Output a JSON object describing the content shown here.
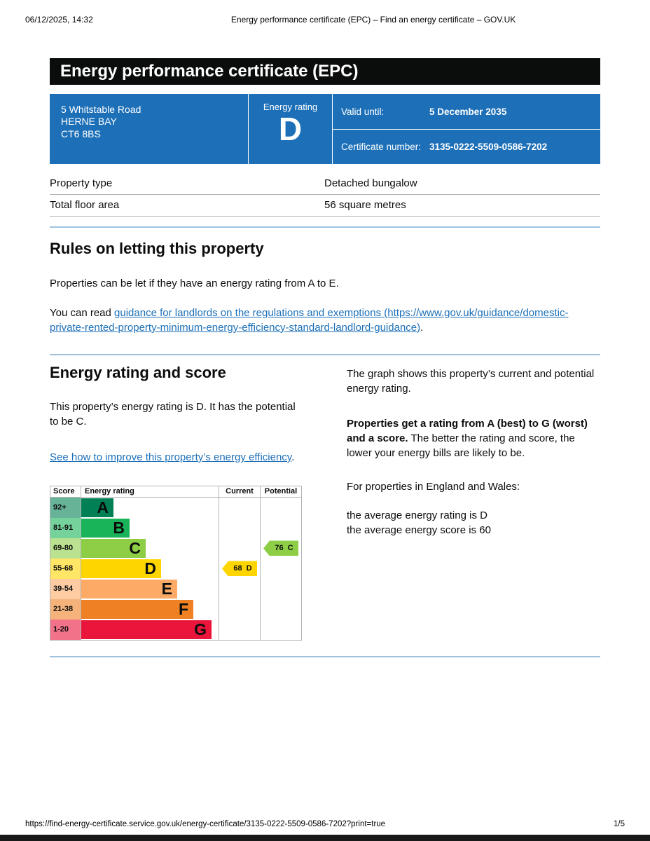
{
  "colors": {
    "govuk_blue": "#1d70b8",
    "link": "#1d70b8",
    "banner_bg": "#0b0c0c",
    "divider": "#9ec2de",
    "table_border": "#b1b4b6",
    "text": "#0b0c0c"
  },
  "print": {
    "timestamp": "06/12/2025, 14:32",
    "doc_title": "Energy performance certificate (EPC) – Find an energy certificate – GOV.UK",
    "footer_url": "https://find-energy-certificate.service.gov.uk/energy-certificate/3135-0222-5509-0586-7202?print=true",
    "page_number": "1/5"
  },
  "banner": {
    "title": "Energy performance certificate (EPC)"
  },
  "summary": {
    "panel_color": "#1d70b8",
    "address_lines": [
      "5 Whitstable Road",
      "HERNE BAY",
      "CT6 8BS"
    ],
    "rating_label": "Energy rating",
    "rating_value": "D",
    "valid_until_label": "Valid until:",
    "valid_until_value": "5 December 2035",
    "certificate_number_label": "Certificate number:",
    "certificate_number_value": "3135-0222-5509-0586-7202"
  },
  "property_table": {
    "rows": [
      {
        "label": "Property type",
        "value": "Detached bungalow"
      },
      {
        "label": "Total floor area",
        "value": "56 square metres"
      }
    ]
  },
  "letting": {
    "heading": "Rules on letting this property",
    "para1": "Properties can be let if they have an energy rating from A to E.",
    "para2_prefix": "You can read ",
    "para2_link": "guidance for landlords on the regulations and exemptions (https://www.gov.uk/guidance/domestic-private-rented-property-minimum-energy-efficiency-standard-landlord-guidance)",
    "para2_suffix": "."
  },
  "rating_section": {
    "heading": "Energy rating and score",
    "intro": "This property’s energy rating is D. It has the potential to be C.",
    "improve_link": "See how to improve this property’s energy efficiency",
    "improve_suffix": ".",
    "graph_para": "The graph shows this property’s current and potential energy rating.",
    "explain_bold": "Properties get a rating from A (best) to G (worst) and a score.",
    "explain_rest": " The better the rating and score, the lower your energy bills are likely to be.",
    "region_para": "For properties in England and Wales:",
    "avg_line1": "the average energy rating is D",
    "avg_line2": "the average energy score is 60"
  },
  "chart_data": {
    "type": "bar",
    "title": "Energy rating and score",
    "headers": {
      "score": "Score",
      "rating": "Energy rating",
      "current": "Current",
      "potential": "Potential"
    },
    "bands": [
      {
        "letter": "A",
        "score": "92+",
        "color": "#008054",
        "score_bg": "#66b398"
      },
      {
        "letter": "B",
        "score": "81-91",
        "color": "#19b459",
        "score_bg": "#75d29b"
      },
      {
        "letter": "C",
        "score": "69-80",
        "color": "#8dce46",
        "score_bg": "#bbe290"
      },
      {
        "letter": "D",
        "score": "55-68",
        "color": "#ffd500",
        "score_bg": "#ffe666"
      },
      {
        "letter": "E",
        "score": "39-54",
        "color": "#fcaa65",
        "score_bg": "#fdcca3"
      },
      {
        "letter": "F",
        "score": "21-38",
        "color": "#ef8023",
        "score_bg": "#f5b37b"
      },
      {
        "letter": "G",
        "score": "1-20",
        "color": "#e9153b",
        "score_bg": "#f27389"
      }
    ],
    "current": {
      "value": 68,
      "band": "D",
      "color": "#ffd500",
      "band_index": 3
    },
    "potential": {
      "value": 76,
      "band": "C",
      "color": "#8dce46",
      "band_index": 2
    }
  }
}
